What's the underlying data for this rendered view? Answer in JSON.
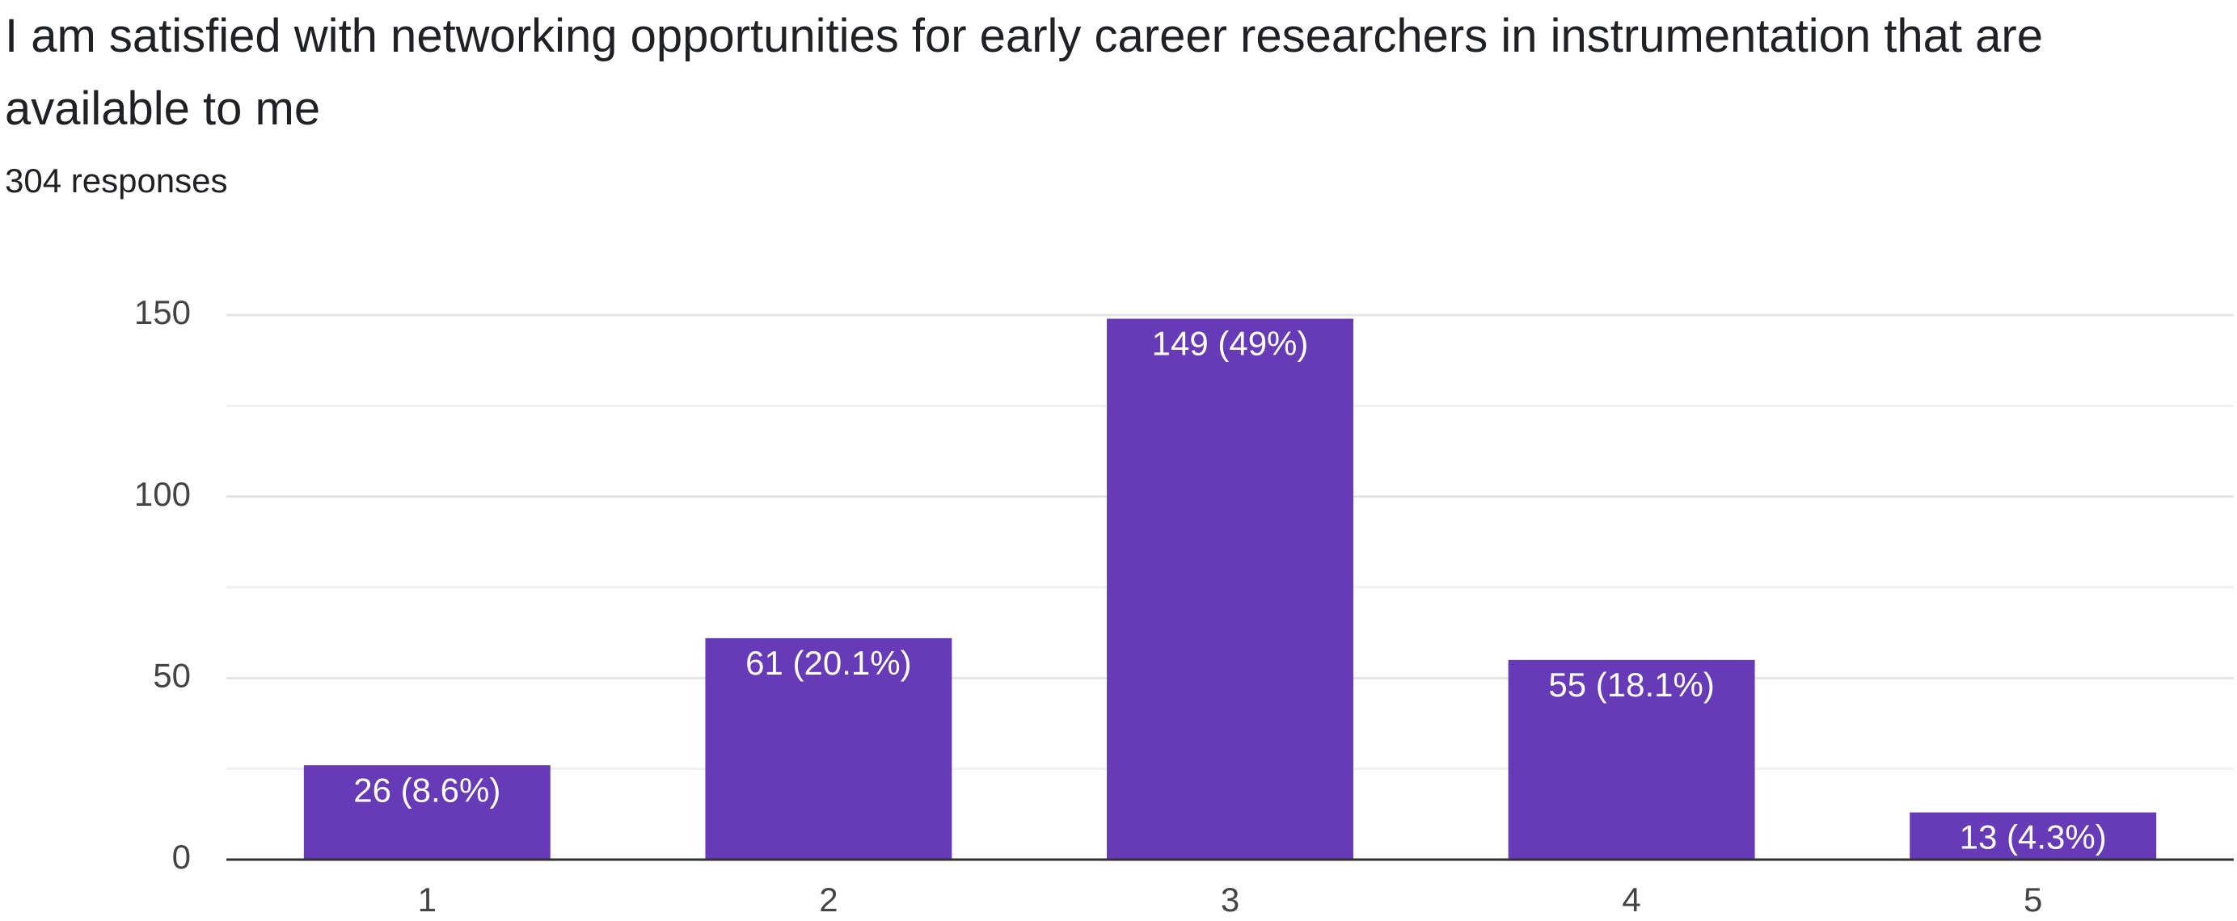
{
  "chart_data": {
    "type": "bar",
    "title": "I am satisfied with networking opportunities for early career researchers in instrumentation that are available to me",
    "subtitle": "304 responses",
    "categories": [
      "1",
      "2",
      "3",
      "4",
      "5"
    ],
    "values": [
      26,
      61,
      149,
      55,
      13
    ],
    "value_labels": [
      "26 (8.6%)",
      "61 (20.1%)",
      "149 (49%)",
      "55 (18.1%)",
      "13 (4.3%)"
    ],
    "color": "#673ab7",
    "ylim": [
      0,
      150
    ],
    "yticks": [
      0,
      50,
      100,
      150
    ],
    "grid": true,
    "minor_grid": true
  }
}
